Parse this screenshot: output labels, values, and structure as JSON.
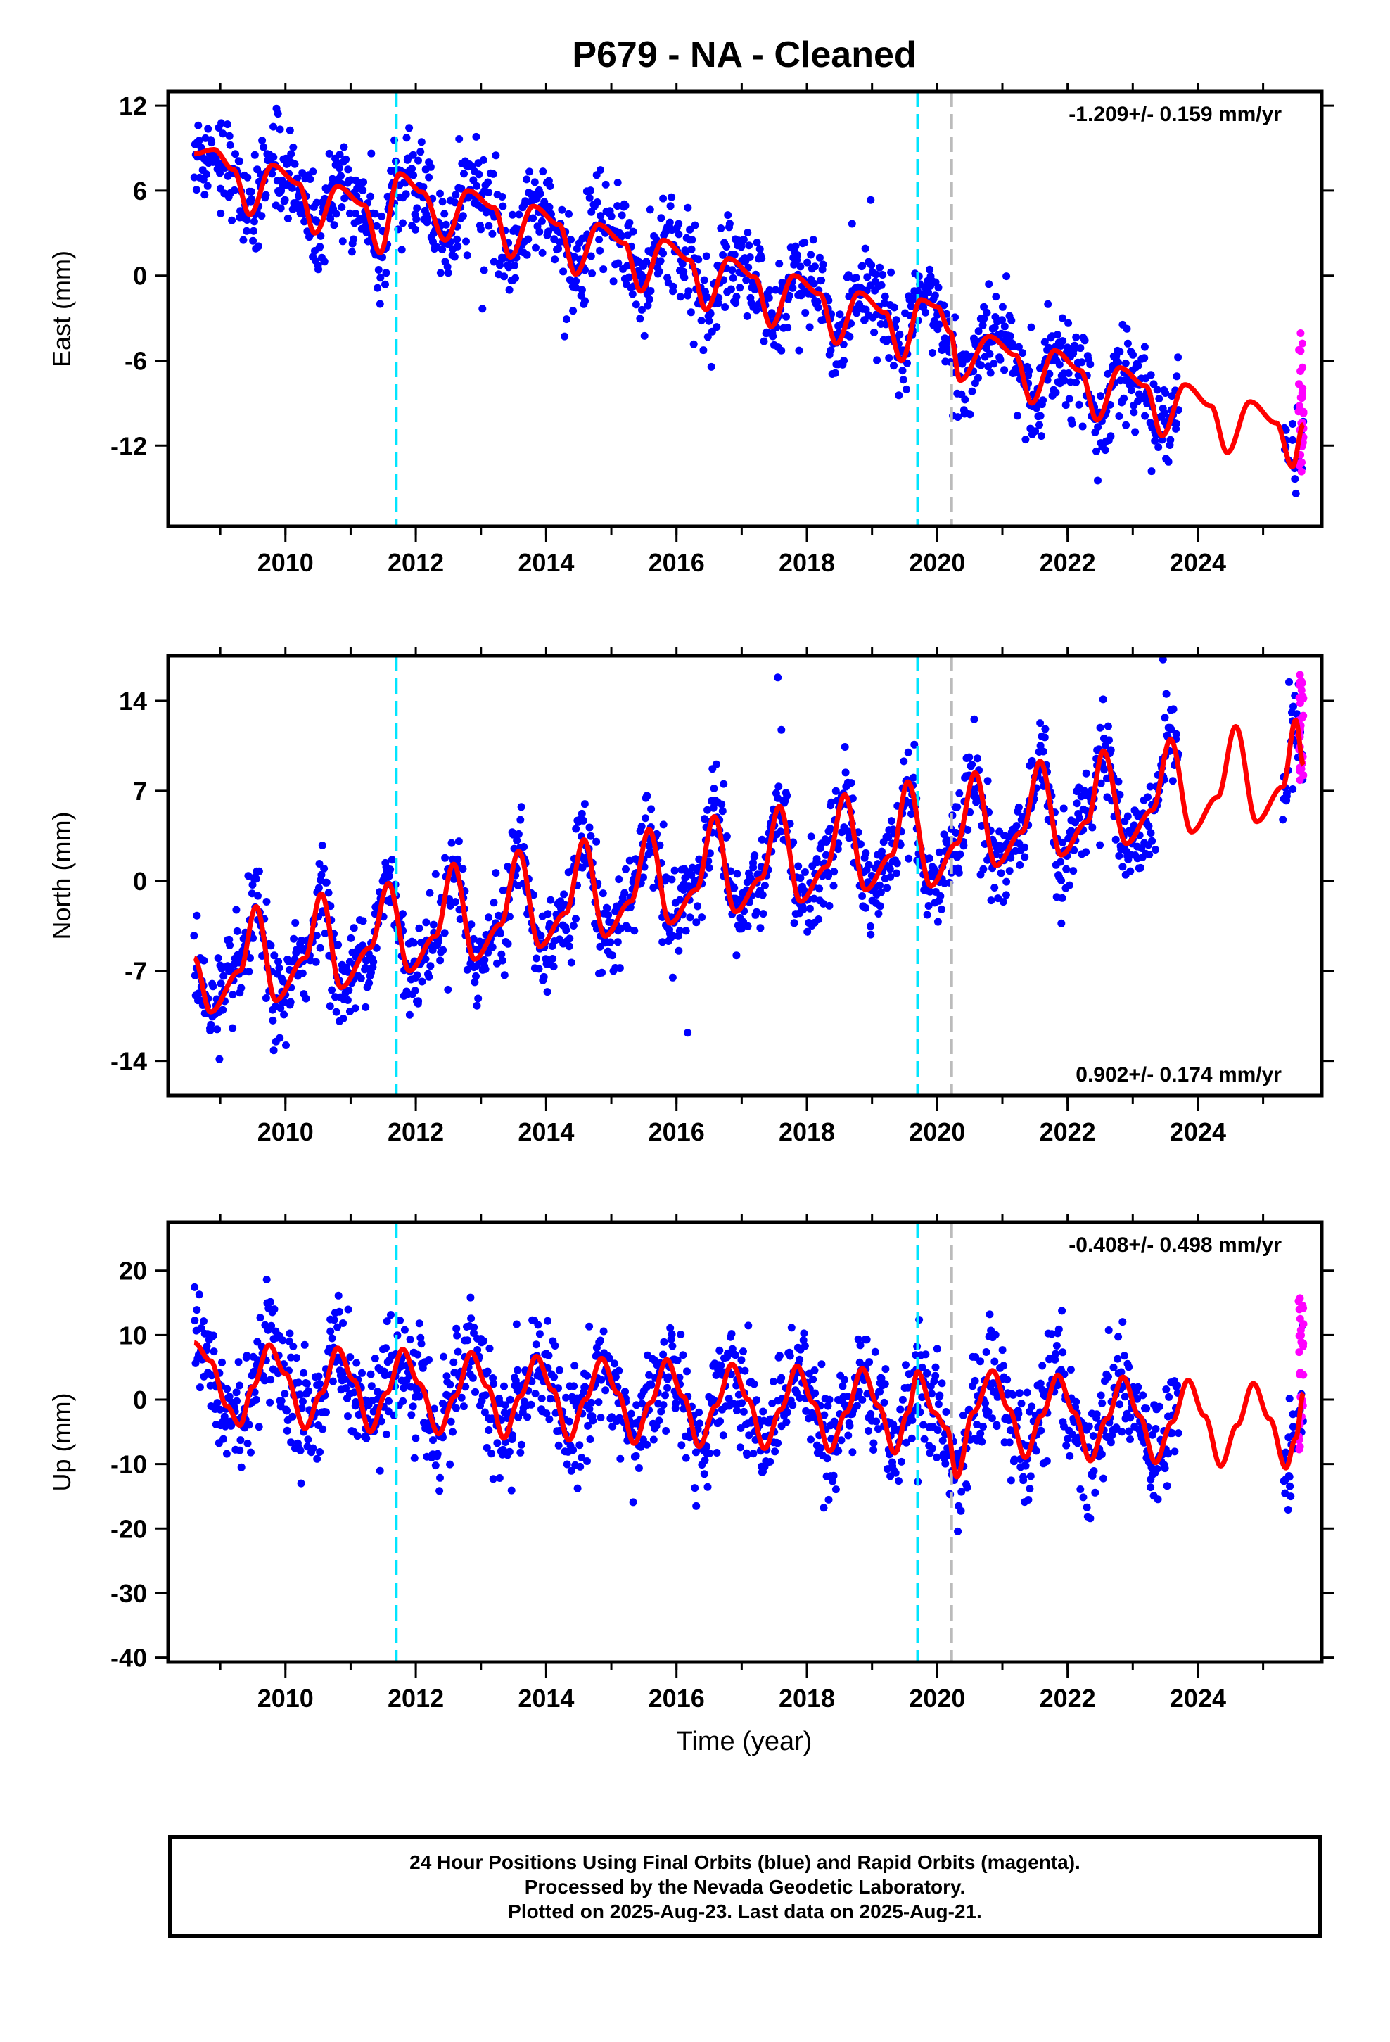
{
  "title": "P679  - NA - Cleaned",
  "time_axis_label": "Time (year)",
  "x_tick_labels": [
    "2010",
    "2012",
    "2014",
    "2016",
    "2018",
    "2020",
    "2022",
    "2024"
  ],
  "colors": {
    "final_orbits": "#0000ff",
    "rapid_orbits": "#ff00ff",
    "model_fit": "#ff0000",
    "event_line": "#00e5ff",
    "gray_line": "#bbbbbb"
  },
  "footer": {
    "line1": "24 Hour Positions Using Final Orbits (blue) and Rapid Orbits (magenta).",
    "line2": "Processed by the Nevada Geodetic Laboratory.",
    "line3": "Plotted on 2025-Aug-23. Last data on 2025-Aug-21."
  },
  "chart_data": [
    {
      "type": "scatter",
      "ylabel": "East (mm)",
      "rate_label": "-1.209+/- 0.159 mm/yr",
      "rate_position": "top-right",
      "xlim": [
        2008.2,
        2025.9
      ],
      "ylim": [
        -17.7,
        13
      ],
      "y_ticks": [
        12,
        6,
        0,
        -6,
        -12
      ],
      "y_tick_labels": [
        "12",
        "6",
        "0",
        "-6",
        "-12"
      ],
      "trend_mm_per_yr": -1.209,
      "series_anchor": [
        2008.65,
        8.5
      ],
      "seasonal_amplitude_mm": 2.4,
      "scatter_sd_mm": 1.6,
      "data_span": [
        2008.6,
        2023.7
      ],
      "rapid_span": [
        2025.3,
        2025.62
      ],
      "rapid_range_mm": [
        -14,
        -4
      ],
      "model_curve": [
        [
          2008.6,
          8.6
        ],
        [
          2008.9,
          8.9
        ],
        [
          2009.2,
          7.5
        ],
        [
          2009.45,
          4.3
        ],
        [
          2009.8,
          7.8
        ],
        [
          2010.2,
          6.5
        ],
        [
          2010.45,
          3.0
        ],
        [
          2010.8,
          6.3
        ],
        [
          2011.2,
          5.0
        ],
        [
          2011.45,
          1.6
        ],
        [
          2011.75,
          7.2
        ],
        [
          2012.1,
          5.9
        ],
        [
          2012.45,
          2.5
        ],
        [
          2012.8,
          6.0
        ],
        [
          2013.2,
          4.8
        ],
        [
          2013.45,
          1.3
        ],
        [
          2013.8,
          4.9
        ],
        [
          2014.2,
          3.6
        ],
        [
          2014.45,
          0.1
        ],
        [
          2014.8,
          3.6
        ],
        [
          2015.2,
          2.3
        ],
        [
          2015.45,
          -1.1
        ],
        [
          2015.8,
          2.5
        ],
        [
          2016.2,
          1.1
        ],
        [
          2016.45,
          -2.4
        ],
        [
          2016.8,
          1.2
        ],
        [
          2017.2,
          -0.1
        ],
        [
          2017.45,
          -3.6
        ],
        [
          2017.8,
          0.0
        ],
        [
          2018.2,
          -1.3
        ],
        [
          2018.45,
          -4.8
        ],
        [
          2018.8,
          -1.2
        ],
        [
          2019.2,
          -2.6
        ],
        [
          2019.45,
          -6.0
        ],
        [
          2019.75,
          -1.7
        ],
        [
          2020.0,
          -2.2
        ],
        [
          2020.2,
          -4.0
        ],
        [
          2020.35,
          -7.4
        ],
        [
          2020.8,
          -4.3
        ],
        [
          2021.2,
          -5.6
        ],
        [
          2021.45,
          -9.0
        ],
        [
          2021.8,
          -5.3
        ],
        [
          2022.2,
          -6.7
        ],
        [
          2022.45,
          -10.2
        ],
        [
          2022.8,
          -6.5
        ],
        [
          2023.2,
          -7.8
        ],
        [
          2023.45,
          -11.3
        ],
        [
          2023.8,
          -7.7
        ],
        [
          2024.2,
          -9.2
        ],
        [
          2024.45,
          -12.5
        ],
        [
          2024.8,
          -8.9
        ],
        [
          2025.2,
          -10.4
        ],
        [
          2025.45,
          -13.5
        ],
        [
          2025.62,
          -10.5
        ]
      ]
    },
    {
      "type": "scatter",
      "ylabel": "North (mm)",
      "rate_label": "0.902+/- 0.174 mm/yr",
      "rate_position": "bottom-right",
      "xlim": [
        2008.2,
        2025.9
      ],
      "ylim": [
        -16.7,
        17.5
      ],
      "y_ticks": [
        14,
        7,
        0,
        -7,
        -14
      ],
      "y_tick_labels": [
        "14",
        "7",
        "0",
        "-7",
        "-14"
      ],
      "trend_mm_per_yr": 0.902,
      "series_anchor": [
        2008.65,
        -6.0
      ],
      "seasonal_amplitude_mm": 4.6,
      "scatter_sd_mm": 1.7,
      "data_span": [
        2008.6,
        2023.7
      ],
      "rapid_span": [
        2025.3,
        2025.62
      ],
      "rapid_range_mm": [
        7,
        17
      ],
      "model_curve": [
        [
          2008.6,
          -6.0
        ],
        [
          2008.85,
          -10.2
        ],
        [
          2009.3,
          -7.0
        ],
        [
          2009.55,
          -2.0
        ],
        [
          2009.85,
          -9.3
        ],
        [
          2010.3,
          -6.0
        ],
        [
          2010.55,
          -1.0
        ],
        [
          2010.85,
          -8.3
        ],
        [
          2011.3,
          -5.2
        ],
        [
          2011.58,
          -0.2
        ],
        [
          2011.9,
          -7.0
        ],
        [
          2012.3,
          -4.3
        ],
        [
          2012.58,
          1.3
        ],
        [
          2012.9,
          -6.1
        ],
        [
          2013.3,
          -3.4
        ],
        [
          2013.58,
          2.3
        ],
        [
          2013.9,
          -5.1
        ],
        [
          2014.3,
          -2.5
        ],
        [
          2014.58,
          3.2
        ],
        [
          2014.9,
          -4.3
        ],
        [
          2015.3,
          -1.6
        ],
        [
          2015.58,
          4.0
        ],
        [
          2015.9,
          -3.3
        ],
        [
          2016.3,
          -0.7
        ],
        [
          2016.58,
          5.0
        ],
        [
          2016.9,
          -2.4
        ],
        [
          2017.3,
          0.2
        ],
        [
          2017.58,
          5.8
        ],
        [
          2017.9,
          -1.6
        ],
        [
          2018.3,
          1.1
        ],
        [
          2018.58,
          6.7
        ],
        [
          2018.9,
          -0.7
        ],
        [
          2019.3,
          2.0
        ],
        [
          2019.55,
          7.7
        ],
        [
          2019.9,
          -0.4
        ],
        [
          2020.3,
          2.9
        ],
        [
          2020.58,
          8.4
        ],
        [
          2020.9,
          1.2
        ],
        [
          2021.3,
          3.8
        ],
        [
          2021.58,
          9.3
        ],
        [
          2021.9,
          2.0
        ],
        [
          2022.3,
          4.6
        ],
        [
          2022.55,
          10.1
        ],
        [
          2022.9,
          2.9
        ],
        [
          2023.3,
          5.5
        ],
        [
          2023.58,
          11.0
        ],
        [
          2023.9,
          3.8
        ],
        [
          2024.3,
          6.5
        ],
        [
          2024.58,
          12.0
        ],
        [
          2024.9,
          4.6
        ],
        [
          2025.3,
          7.3
        ],
        [
          2025.5,
          12.5
        ],
        [
          2025.62,
          9.0
        ]
      ]
    },
    {
      "type": "scatter",
      "ylabel": "Up (mm)",
      "rate_label": "-0.408+/- 0.498 mm/yr",
      "rate_position": "top-right",
      "xlim": [
        2008.2,
        2025.9
      ],
      "ylim": [
        -40.7,
        27.5
      ],
      "y_ticks": [
        20,
        10,
        0,
        -10,
        -20,
        -30,
        -40
      ],
      "y_tick_labels": [
        "20",
        "10",
        "0",
        "-10",
        "-20",
        "-30",
        "-40"
      ],
      "trend_mm_per_yr": -0.408,
      "series_anchor": [
        2008.65,
        8.8
      ],
      "seasonal_amplitude_mm": 6.2,
      "scatter_sd_mm": 4.3,
      "data_span": [
        2008.6,
        2023.7
      ],
      "rapid_span": [
        2025.3,
        2025.62
      ],
      "rapid_range_mm": [
        -8,
        16
      ],
      "model_curve": [
        [
          2008.6,
          8.8
        ],
        [
          2008.85,
          6.0
        ],
        [
          2009.1,
          -1.0
        ],
        [
          2009.3,
          -4.0
        ],
        [
          2009.5,
          2.0
        ],
        [
          2009.75,
          8.5
        ],
        [
          2010.0,
          4.0
        ],
        [
          2010.3,
          -4.5
        ],
        [
          2010.55,
          1.0
        ],
        [
          2010.8,
          8.0
        ],
        [
          2011.05,
          3.0
        ],
        [
          2011.3,
          -5.0
        ],
        [
          2011.55,
          1.0
        ],
        [
          2011.8,
          7.8
        ],
        [
          2012.05,
          2.5
        ],
        [
          2012.35,
          -5.3
        ],
        [
          2012.6,
          0.5
        ],
        [
          2012.85,
          7.3
        ],
        [
          2013.1,
          2.0
        ],
        [
          2013.35,
          -6.0
        ],
        [
          2013.6,
          0.5
        ],
        [
          2013.85,
          6.7
        ],
        [
          2014.1,
          1.5
        ],
        [
          2014.35,
          -6.3
        ],
        [
          2014.6,
          0.0
        ],
        [
          2014.85,
          6.4
        ],
        [
          2015.1,
          1.0
        ],
        [
          2015.35,
          -6.8
        ],
        [
          2015.6,
          -0.5
        ],
        [
          2015.85,
          6.2
        ],
        [
          2016.1,
          0.5
        ],
        [
          2016.35,
          -7.3
        ],
        [
          2016.6,
          -1.0
        ],
        [
          2016.85,
          5.5
        ],
        [
          2017.1,
          0.0
        ],
        [
          2017.35,
          -7.6
        ],
        [
          2017.6,
          -1.5
        ],
        [
          2017.85,
          5.2
        ],
        [
          2018.1,
          -0.5
        ],
        [
          2018.35,
          -8.0
        ],
        [
          2018.6,
          -2.0
        ],
        [
          2018.85,
          4.8
        ],
        [
          2019.1,
          -1.0
        ],
        [
          2019.35,
          -8.3
        ],
        [
          2019.55,
          -2.0
        ],
        [
          2019.7,
          4.3
        ],
        [
          2019.95,
          -2.0
        ],
        [
          2020.15,
          -4.5
        ],
        [
          2020.3,
          -12.0
        ],
        [
          2020.55,
          -2.0
        ],
        [
          2020.85,
          4.5
        ],
        [
          2021.1,
          -1.5
        ],
        [
          2021.35,
          -9.0
        ],
        [
          2021.6,
          -2.5
        ],
        [
          2021.85,
          3.8
        ],
        [
          2022.1,
          -2.0
        ],
        [
          2022.35,
          -9.5
        ],
        [
          2022.6,
          -3.0
        ],
        [
          2022.85,
          3.5
        ],
        [
          2023.1,
          -2.5
        ],
        [
          2023.35,
          -9.8
        ],
        [
          2023.6,
          -3.5
        ],
        [
          2023.85,
          3.0
        ],
        [
          2024.1,
          -2.5
        ],
        [
          2024.35,
          -10.3
        ],
        [
          2024.6,
          -4.0
        ],
        [
          2024.85,
          2.5
        ],
        [
          2025.1,
          -3.0
        ],
        [
          2025.35,
          -10.6
        ],
        [
          2025.5,
          -6.0
        ],
        [
          2025.62,
          1.0
        ]
      ]
    }
  ],
  "event_lines": {
    "cyan": [
      2011.7,
      2019.7
    ],
    "gray": [
      2020.22
    ]
  }
}
